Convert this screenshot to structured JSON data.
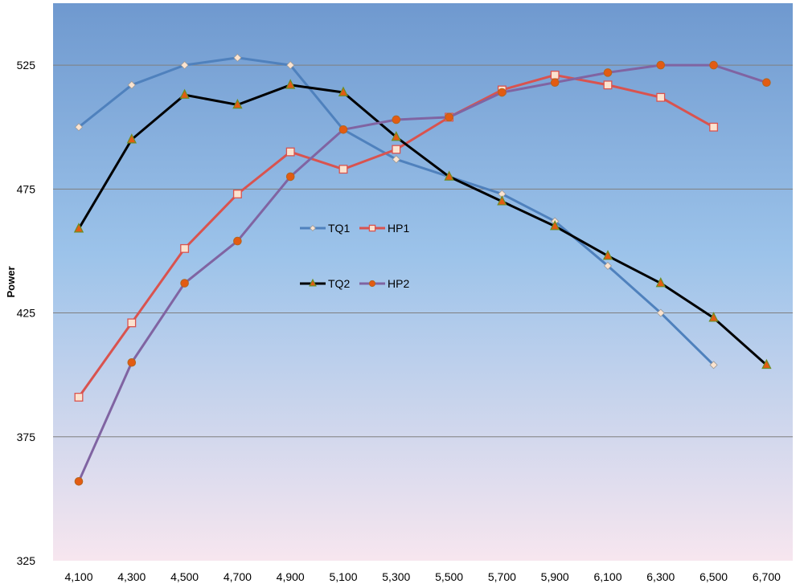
{
  "chart_data": {
    "type": "line",
    "title": "",
    "xlabel": "",
    "ylabel": "Power",
    "ylim": [
      325,
      550
    ],
    "yticks": [
      325,
      375,
      425,
      475,
      525
    ],
    "grid": true,
    "categories": [
      "4,100",
      "4,300",
      "4,500",
      "4,700",
      "4,900",
      "5,100",
      "5,300",
      "5,500",
      "5,700",
      "5,900",
      "6,100",
      "6,300",
      "6,500",
      "6,700"
    ],
    "series": [
      {
        "name": "TQ1",
        "color": "#4f81bd",
        "marker": "diamond",
        "marker_fill": "#fbe3cf",
        "values": [
          500,
          517,
          525,
          528,
          525,
          499,
          487,
          480,
          473,
          462,
          444,
          425,
          404,
          null
        ]
      },
      {
        "name": "HP1",
        "color": "#d9534f",
        "marker": "square",
        "marker_fill": "#fbe3cf",
        "values": [
          391,
          421,
          451,
          473,
          490,
          483,
          491,
          504,
          515,
          521,
          517,
          512,
          500,
          null
        ]
      },
      {
        "name": "TQ2",
        "color": "#000000",
        "marker": "triangle",
        "marker_fill": "#e35b12",
        "values": [
          459,
          495,
          513,
          509,
          517,
          514,
          496,
          480,
          470,
          460,
          448,
          437,
          423,
          404
        ]
      },
      {
        "name": "HP2",
        "color": "#8064a2",
        "marker": "circle",
        "marker_fill": "#e35b12",
        "values": [
          357,
          405,
          437,
          454,
          480,
          499,
          503,
          504,
          514,
          518,
          522,
          525,
          525,
          518
        ]
      }
    ],
    "legend": [
      {
        "row": 1,
        "items": [
          "TQ1",
          "HP1"
        ]
      },
      {
        "row": 2,
        "items": [
          "TQ2",
          "HP2"
        ]
      }
    ],
    "legend_placement": "center"
  }
}
